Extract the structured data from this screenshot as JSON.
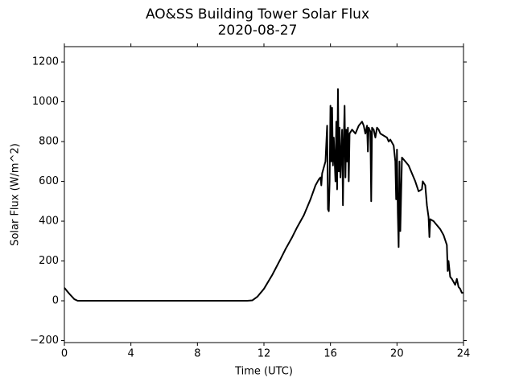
{
  "chart_data": {
    "type": "line",
    "title": "AO&SS Building Tower Solar Flux",
    "subtitle": "2020-08-27",
    "x_label": "Time (UTC)",
    "y_label": "Solar Flux (W/m^2)",
    "xlim": [
      0,
      24
    ],
    "xticks": [
      0,
      4,
      8,
      12,
      16,
      20,
      24
    ],
    "ylim": [
      -210,
      1277
    ],
    "yticks": [
      {
        "value": -200,
        "label": "−200"
      },
      0,
      200,
      400,
      600,
      800,
      1000,
      1200
    ],
    "series": [
      {
        "color": "#000000",
        "x": [
          0,
          0.3,
          0.6,
          0.8,
          1,
          11,
          11.3,
          11.6,
          12,
          12.5,
          13,
          13.3,
          13.7,
          14,
          14.4,
          14.8,
          15.1,
          15.3,
          15.4,
          15.45,
          15.5,
          15.7,
          15.8,
          15.85,
          15.9,
          15.95,
          16.0,
          16.05,
          16.1,
          16.15,
          16.2,
          16.3,
          16.35,
          16.4,
          16.45,
          16.5,
          16.55,
          16.6,
          16.7,
          16.75,
          16.8,
          16.85,
          16.9,
          16.95,
          17.0,
          17.05,
          17.1,
          17.15,
          17.3,
          17.5,
          17.7,
          17.8,
          17.9,
          18.0,
          18.1,
          18.2,
          18.25,
          18.3,
          18.4,
          18.45,
          18.5,
          18.6,
          18.7,
          18.8,
          18.9,
          19.0,
          19.2,
          19.4,
          19.5,
          19.6,
          19.8,
          19.9,
          19.95,
          20.0,
          20.05,
          20.1,
          20.15,
          20.2,
          20.3,
          20.5,
          20.7,
          20.9,
          21.1,
          21.3,
          21.5,
          21.55,
          21.7,
          21.8,
          21.9,
          21.95,
          22.0,
          22.2,
          22.4,
          22.6,
          22.8,
          23.0,
          23.05,
          23.1,
          23.2,
          23.3,
          23.5,
          23.6,
          23.7,
          23.8,
          23.9,
          24.0
        ],
        "values": [
          65,
          35,
          8,
          0,
          0,
          0,
          2,
          20,
          60,
          130,
          210,
          260,
          320,
          370,
          430,
          510,
          580,
          610,
          620,
          580,
          640,
          700,
          880,
          460,
          450,
          600,
          980,
          700,
          970,
          680,
          820,
          600,
          900,
          560,
          1064,
          650,
          870,
          620,
          860,
          480,
          800,
          980,
          620,
          860,
          700,
          870,
          600,
          840,
          860,
          840,
          880,
          890,
          900,
          880,
          840,
          880,
          750,
          870,
          850,
          500,
          870,
          860,
          820,
          870,
          860,
          840,
          830,
          820,
          800,
          810,
          780,
          700,
          510,
          760,
          440,
          270,
          700,
          350,
          720,
          700,
          680,
          640,
          600,
          550,
          560,
          600,
          580,
          480,
          420,
          320,
          410,
          400,
          380,
          360,
          330,
          280,
          150,
          200,
          120,
          110,
          80,
          110,
          70,
          60,
          40,
          40
        ]
      }
    ]
  }
}
